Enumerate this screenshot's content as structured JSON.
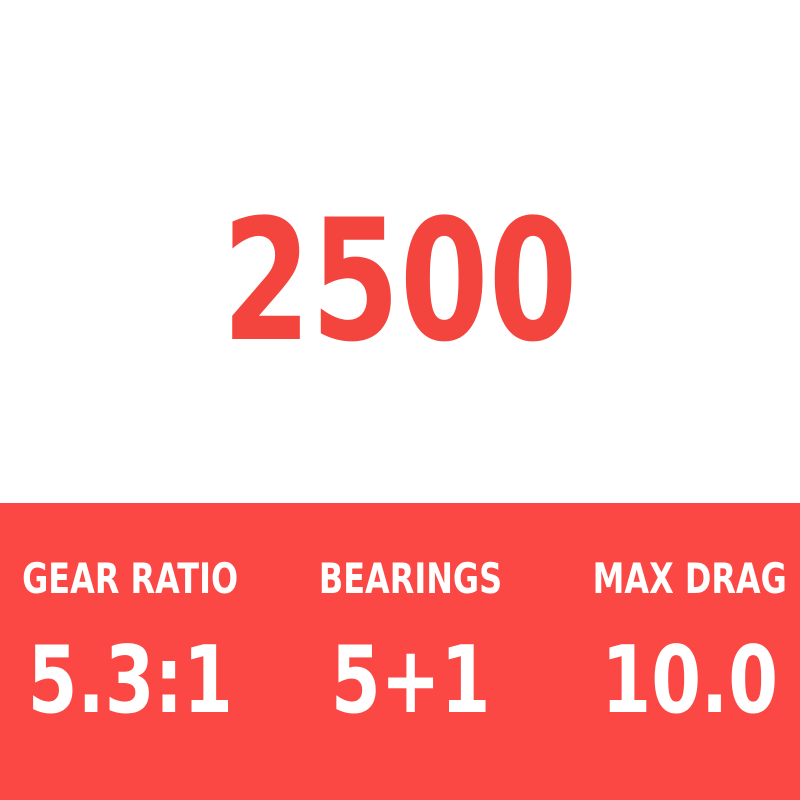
{
  "product": {
    "model": "2500"
  },
  "specs": [
    {
      "label": "GEAR RATIO",
      "value": "5.3:1"
    },
    {
      "label": "BEARINGS",
      "value": "5+1"
    },
    {
      "label": "MAX DRAG",
      "value": "10.0"
    }
  ],
  "colors": {
    "background": "#FFFFFF",
    "model_text": "#F3453E",
    "banner_background": "#FB4844",
    "spec_text": "#FFFFFF"
  }
}
